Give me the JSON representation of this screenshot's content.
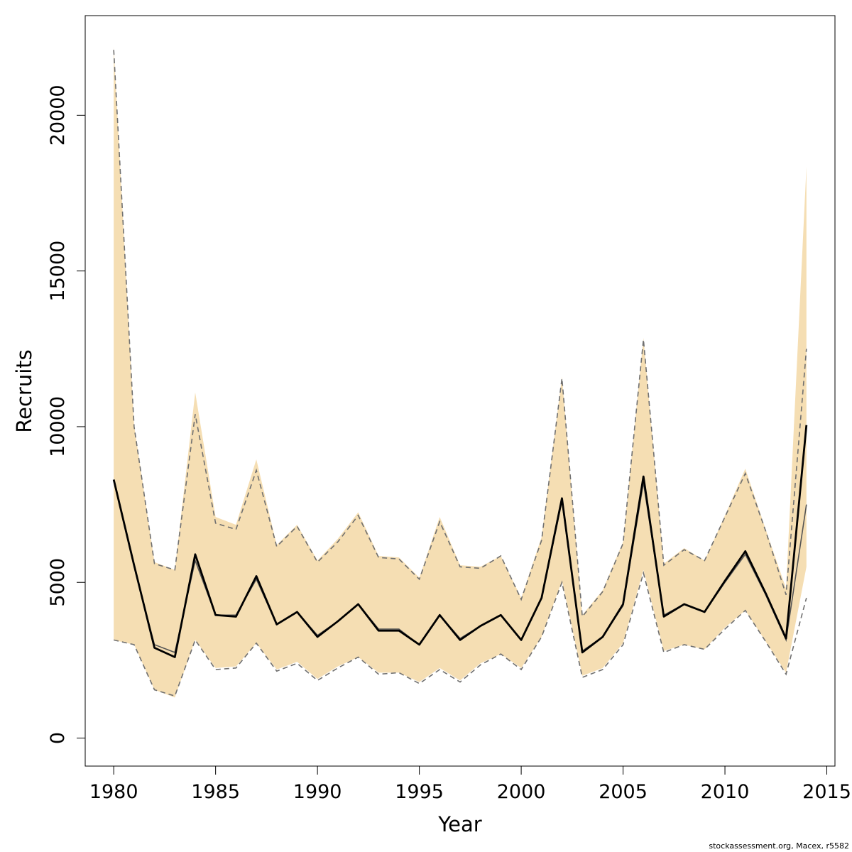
{
  "chart_data": {
    "type": "line",
    "xlabel": "Year",
    "ylabel": "Recruits",
    "xlim": [
      1978.6,
      2015.4
    ],
    "ylim": [
      -900,
      23200
    ],
    "x_ticks": [
      1980,
      1985,
      1990,
      1995,
      2000,
      2005,
      2010,
      2015
    ],
    "y_ticks": [
      0,
      5000,
      10000,
      15000,
      20000
    ],
    "grid": false,
    "x": [
      1980,
      1981,
      1982,
      1983,
      1984,
      1985,
      1986,
      1987,
      1988,
      1989,
      1990,
      1991,
      1992,
      1993,
      1994,
      1995,
      1996,
      1997,
      1998,
      1999,
      2000,
      2001,
      2002,
      2003,
      2004,
      2005,
      2006,
      2007,
      2008,
      2009,
      2010,
      2011,
      2012,
      2013,
      2014
    ],
    "series": [
      {
        "role": "estimate",
        "color": "#000000",
        "values": [
          8300,
          5550,
          2900,
          2600,
          5900,
          3950,
          3900,
          5200,
          3650,
          4050,
          3250,
          3750,
          4300,
          3450,
          3450,
          3000,
          3950,
          3150,
          3600,
          3950,
          3150,
          4500,
          7700,
          2750,
          3250,
          4300,
          8400,
          3900,
          4300,
          4050,
          5050,
          6000,
          4650,
          3200,
          10050
        ]
      },
      {
        "role": "alternate estimate",
        "color": "#555555",
        "values": [
          8300,
          5500,
          3000,
          2750,
          5700,
          3950,
          3950,
          5100,
          3650,
          4050,
          3300,
          3750,
          4300,
          3500,
          3500,
          3000,
          3950,
          3200,
          3600,
          3950,
          3150,
          4500,
          7600,
          2800,
          3250,
          4250,
          8200,
          3950,
          4300,
          4050,
          5000,
          5900,
          4600,
          3150,
          7500
        ]
      },
      {
        "role": "confidence band",
        "color": "#f5deb3",
        "lower": [
          3150,
          3000,
          1550,
          1300,
          3150,
          2250,
          2300,
          3050,
          2200,
          2450,
          1900,
          2300,
          2600,
          2100,
          2100,
          1800,
          2250,
          1850,
          2400,
          2700,
          2250,
          3250,
          5050,
          2000,
          2250,
          3050,
          5400,
          2800,
          3000,
          2850,
          3550,
          4100,
          3100,
          2100,
          5500
        ],
        "upper": [
          22200,
          10050,
          5650,
          5400,
          11100,
          7100,
          6850,
          8950,
          6200,
          6850,
          5700,
          6400,
          7250,
          5850,
          5800,
          5150,
          7100,
          5550,
          5500,
          5850,
          4500,
          6450,
          11600,
          3950,
          4750,
          6300,
          12850,
          5600,
          6100,
          5700,
          7150,
          8650,
          6700,
          4800,
          18350
        ]
      },
      {
        "role": "alternate confidence band",
        "color": "#707070",
        "lower": [
          3150,
          3000,
          1550,
          1350,
          3150,
          2200,
          2250,
          3050,
          2150,
          2400,
          1850,
          2250,
          2600,
          2050,
          2100,
          1750,
          2200,
          1800,
          2350,
          2700,
          2200,
          3250,
          5000,
          1950,
          2200,
          3000,
          5300,
          2750,
          3000,
          2850,
          3500,
          4100,
          3100,
          2050,
          4500
        ],
        "upper": [
          22100,
          10000,
          5600,
          5400,
          10400,
          6900,
          6700,
          8600,
          6150,
          6800,
          5650,
          6300,
          7150,
          5800,
          5750,
          5100,
          6950,
          5500,
          5450,
          5850,
          4450,
          6350,
          11550,
          3900,
          4700,
          6250,
          12800,
          5550,
          6050,
          5700,
          7100,
          8500,
          6650,
          4600,
          12500
        ]
      }
    ]
  },
  "footer": {
    "credit": "stockassessment.org, Macex, r5582"
  }
}
